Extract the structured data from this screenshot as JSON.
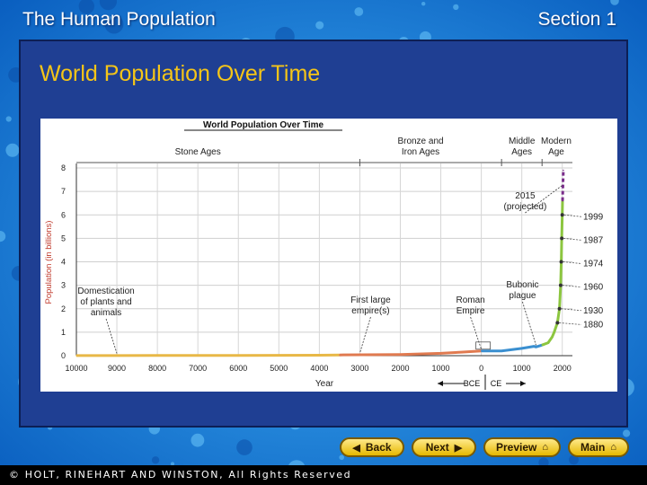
{
  "header": {
    "title": "The Human Population",
    "section": "Section 1"
  },
  "subtitle": "World Population Over Time",
  "chart_data": {
    "type": "line",
    "title": "World Population Over Time",
    "xlabel": "Year",
    "ylabel": "Population (in billions)",
    "x_tick_labels": [
      "10000",
      "9000",
      "8000",
      "7000",
      "6000",
      "5000",
      "4000",
      "3000",
      "2000",
      "1000",
      "0",
      "1000",
      "2000"
    ],
    "x_tick_values": [
      -10000,
      -9000,
      -8000,
      -7000,
      -6000,
      -5000,
      -4000,
      -3000,
      -2000,
      -1000,
      0,
      1000,
      2000
    ],
    "xlim": [
      -10000,
      2250
    ],
    "ylim": [
      0,
      8
    ],
    "y_ticks": [
      0,
      1,
      2,
      3,
      4,
      5,
      6,
      7,
      8
    ],
    "era_labels": [
      {
        "lines": [
          "Stone Ages"
        ],
        "x": -7000
      },
      {
        "lines": [
          "Bronze and",
          "Iron Ages"
        ],
        "x": -1500
      },
      {
        "lines": [
          "Middle",
          "Ages"
        ],
        "x": 1000
      },
      {
        "lines": [
          "Modern",
          "Age"
        ],
        "x": 1850
      }
    ],
    "era_dividers": [
      -3000,
      500,
      1500
    ],
    "era_label_bottom": "BCE | CE",
    "era_label_bce": "BCE",
    "era_label_ce": "CE",
    "series": [
      {
        "color": "#e8b847",
        "points": [
          [
            -10000,
            0.004
          ],
          [
            -8000,
            0.006
          ],
          [
            -6000,
            0.008
          ],
          [
            -4000,
            0.02
          ],
          [
            -3500,
            0.03
          ]
        ]
      },
      {
        "color": "#e07a50",
        "points": [
          [
            -3500,
            0.03
          ],
          [
            -2000,
            0.05
          ],
          [
            -1000,
            0.1
          ],
          [
            -500,
            0.15
          ],
          [
            0,
            0.2
          ]
        ]
      },
      {
        "color": "#3a8fd0",
        "points": [
          [
            0,
            0.2
          ],
          [
            500,
            0.2
          ],
          [
            1000,
            0.31
          ],
          [
            1300,
            0.4
          ],
          [
            1350,
            0.37
          ],
          [
            1500,
            0.45
          ]
        ]
      },
      {
        "color": "#8cc63f",
        "points": [
          [
            1500,
            0.45
          ],
          [
            1650,
            0.55
          ],
          [
            1750,
            0.8
          ],
          [
            1800,
            1.0
          ],
          [
            1880,
            1.4
          ],
          [
            1930,
            2.0
          ],
          [
            1960,
            3.0
          ],
          [
            1974,
            4.0
          ],
          [
            1987,
            5.0
          ],
          [
            1999,
            6.0
          ],
          [
            2006,
            6.6
          ]
        ]
      },
      {
        "color": "#7a2d8a",
        "dashed": true,
        "points": [
          [
            2006,
            6.6
          ],
          [
            2015,
            7.2
          ],
          [
            2025,
            7.9
          ]
        ]
      }
    ],
    "year_markers": [
      {
        "label": "1880",
        "x": 1880,
        "y": 1.4
      },
      {
        "label": "1930",
        "x": 1930,
        "y": 2.0
      },
      {
        "label": "1960",
        "x": 1960,
        "y": 3.0
      },
      {
        "label": "1974",
        "x": 1974,
        "y": 4.0
      },
      {
        "label": "1987",
        "x": 1987,
        "y": 5.0
      },
      {
        "label": "1999",
        "x": 1999,
        "y": 6.0
      }
    ],
    "annotations": [
      {
        "lines": [
          "Domestication",
          "of plants and",
          "animals"
        ],
        "x": -9000,
        "y": 0.02
      },
      {
        "lines": [
          "First large",
          "empire(s)"
        ],
        "x": -3000,
        "y": 0.03
      },
      {
        "lines": [
          "Roman",
          "Empire"
        ],
        "x": 0,
        "y": 0.2
      },
      {
        "lines": [
          "Bubonic",
          "plague"
        ],
        "x": 1350,
        "y": 0.37
      },
      {
        "lines": [
          "2015",
          "(projected)"
        ],
        "x": 2015,
        "y": 7.2
      }
    ]
  },
  "nav": {
    "back": "Back",
    "next": "Next",
    "preview": "Preview",
    "main": "Main"
  },
  "footer": {
    "copyright": "© HOLT, RINEHART AND WINSTON, All Rights Reserved"
  },
  "colors": {
    "accent": "#f5c518",
    "panel": "#1f3f93",
    "background": "#1b8de0"
  }
}
